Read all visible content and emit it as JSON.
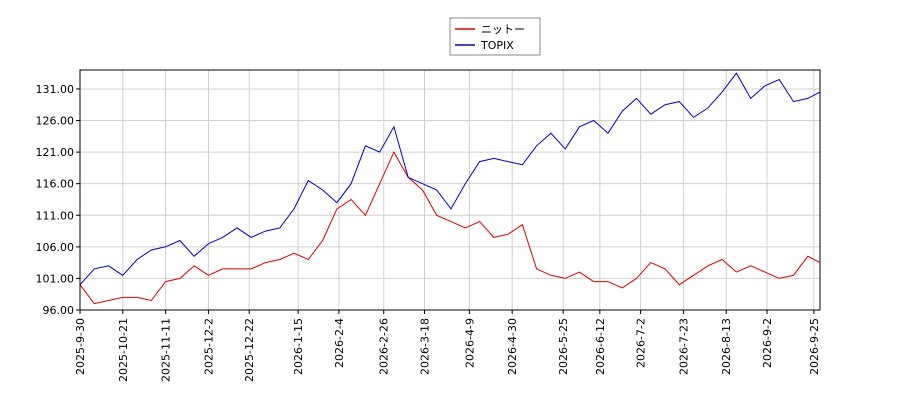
{
  "chart_data": {
    "type": "line",
    "x": [
      "2025-9-30",
      "2025-10-7",
      "2025-10-14",
      "2025-10-21",
      "2025-10-28",
      "2025-11-4",
      "2025-11-11",
      "2025-11-18",
      "2025-11-25",
      "2025-12-2",
      "2025-12-9",
      "2025-12-16",
      "2025-12-23",
      "2025-12-30",
      "2026-1-6",
      "2026-1-13",
      "2026-1-20",
      "2026-1-27",
      "2026-2-3",
      "2026-2-10",
      "2026-2-17",
      "2026-2-24",
      "2026-3-3",
      "2026-3-10",
      "2026-3-17",
      "2026-3-24",
      "2026-3-31",
      "2026-4-7",
      "2026-4-14",
      "2026-4-21",
      "2026-4-28",
      "2026-5-5",
      "2026-5-12",
      "2026-5-19",
      "2026-5-26",
      "2026-6-2",
      "2026-6-9",
      "2026-6-16",
      "2026-6-23",
      "2026-6-30",
      "2026-7-7",
      "2026-7-14",
      "2026-7-21",
      "2026-7-28",
      "2026-8-4",
      "2026-8-11",
      "2026-8-18",
      "2026-8-25",
      "2026-9-1",
      "2026-9-8",
      "2026-9-15",
      "2026-9-22",
      "2026-9-28"
    ],
    "series": [
      {
        "name": "ニットー",
        "color": "#dd0000",
        "values": [
          100,
          97,
          97.5,
          98,
          98,
          97.5,
          100.5,
          101,
          103,
          101.5,
          102.5,
          102.5,
          102.5,
          103.5,
          104,
          105,
          104,
          107,
          112,
          113.5,
          111,
          116,
          121,
          117,
          115,
          111,
          110,
          109,
          110,
          107.5,
          108,
          109.5,
          102.5,
          101.5,
          101,
          102,
          100.5,
          100.5,
          99.5,
          101,
          103.5,
          102.5,
          100,
          101.5,
          103,
          104,
          102,
          103,
          102,
          101,
          101.5,
          104.5,
          103.5
        ]
      },
      {
        "name": "TOPIX",
        "color": "#0000cc",
        "values": [
          100,
          102.5,
          103,
          101.5,
          104,
          105.5,
          106,
          107,
          104.5,
          106.5,
          107.5,
          109,
          107.5,
          108.5,
          109,
          112,
          116.5,
          115,
          113,
          116,
          122,
          121,
          125,
          117,
          116,
          115,
          112,
          116,
          119.5,
          120,
          119.5,
          119,
          122,
          124,
          121.5,
          125,
          126,
          124,
          127.5,
          129.5,
          127,
          128.5,
          129,
          126.5,
          128,
          130.5,
          133.5,
          129.5,
          131.5,
          132.5,
          129,
          129.5,
          130.5
        ]
      }
    ],
    "xlim": [
      "2025-9-30",
      "2026-9-28"
    ],
    "xticks": [
      "2025-9-30",
      "2025-10-21",
      "2025-11-11",
      "2025-12-2",
      "2025-12-22",
      "2026-1-15",
      "2026-2-4",
      "2026-2-26",
      "2026-3-18",
      "2026-4-9",
      "2026-4-30",
      "2026-5-25",
      "2026-6-12",
      "2026-7-2",
      "2026-7-23",
      "2026-8-13",
      "2026-9-2",
      "2026-9-25"
    ],
    "ylim": [
      96,
      134
    ],
    "yticks": [
      {
        "value": 96,
        "label": "96.00"
      },
      {
        "value": 101,
        "label": "101.00"
      },
      {
        "value": 106,
        "label": "106.00"
      },
      {
        "value": 111,
        "label": "111.00"
      },
      {
        "value": 116,
        "label": "116.00"
      },
      {
        "value": 121,
        "label": "121.00"
      },
      {
        "value": 126,
        "label": "126.00"
      },
      {
        "value": 131,
        "label": "131.00"
      }
    ],
    "grid": true,
    "legend": "top"
  }
}
